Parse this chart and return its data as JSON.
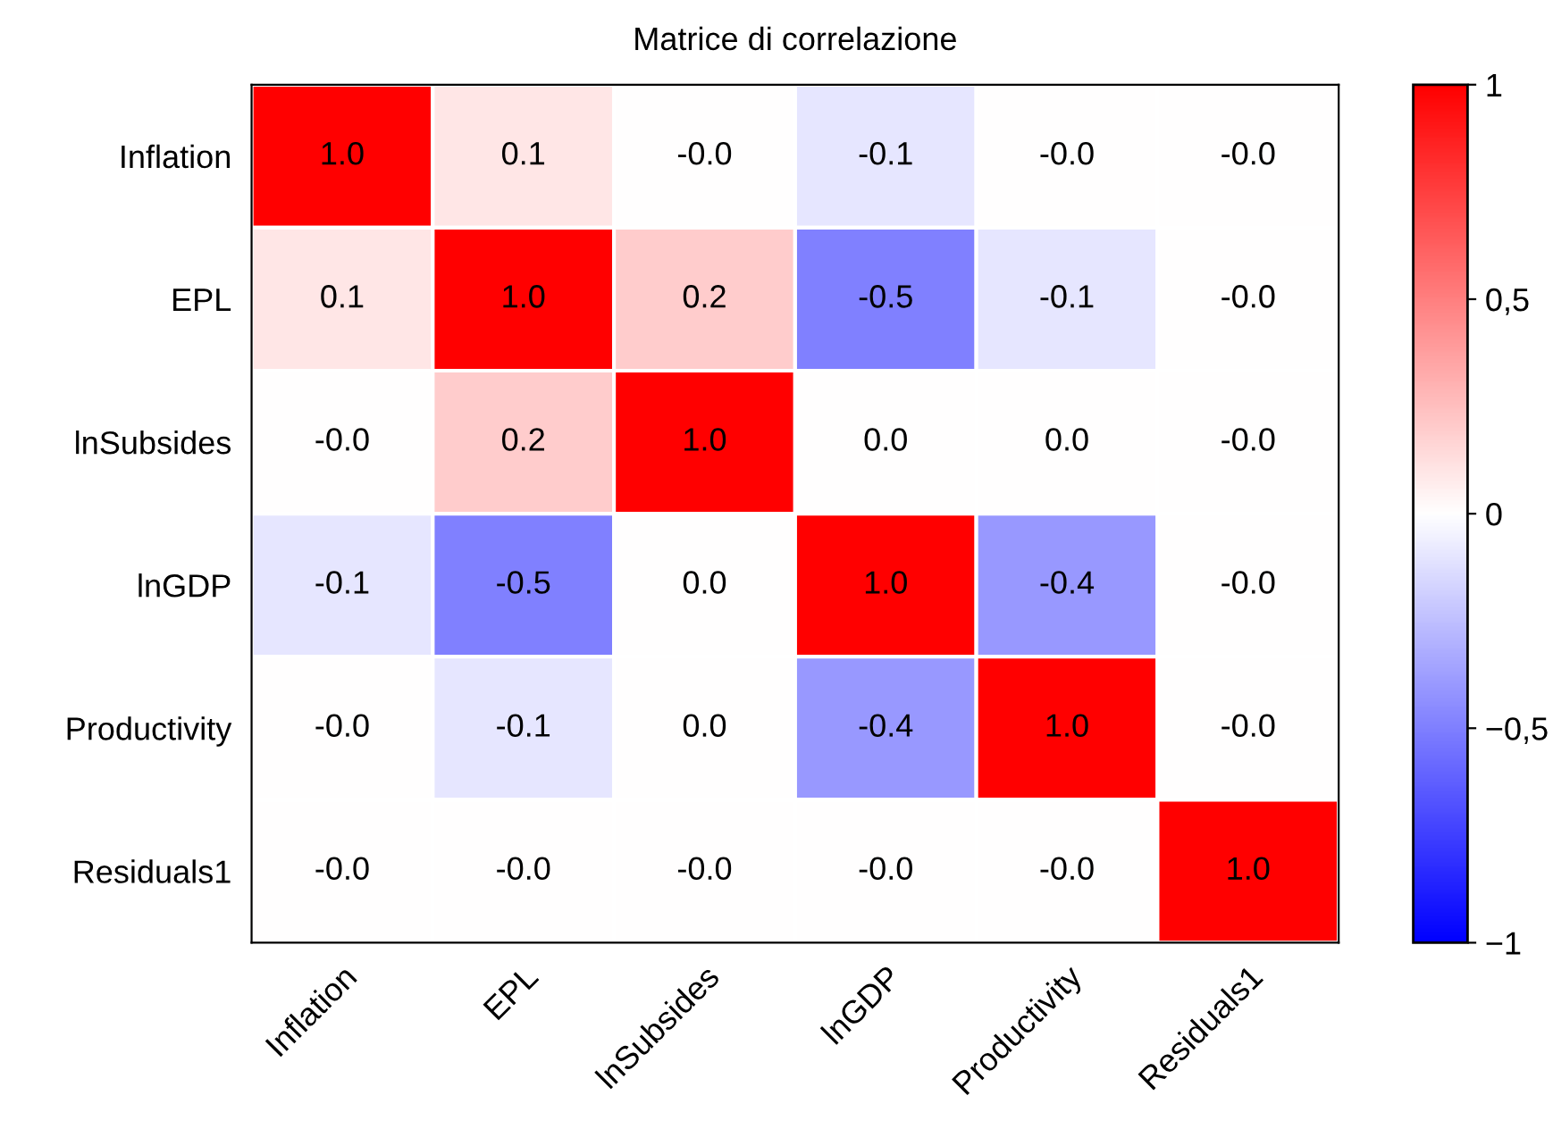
{
  "chart_data": {
    "type": "heatmap",
    "title": "Matrice di correlazione",
    "categories": [
      "Inflation",
      "EPL",
      "lnSubsides",
      "lnGDP",
      "Productivity",
      "Residuals1"
    ],
    "y_categories": [
      "Inflation",
      "EPL",
      "lnSubsides",
      "lnGDP",
      "Productivity",
      "Residuals1"
    ],
    "cells": [
      [
        1.0,
        0.1,
        0.0,
        -0.1,
        0.0,
        0.0
      ],
      [
        0.1,
        1.0,
        0.2,
        -0.5,
        -0.1,
        0.0
      ],
      [
        0.0,
        0.2,
        1.0,
        0.0,
        0.0,
        0.0
      ],
      [
        -0.1,
        -0.5,
        0.0,
        1.0,
        -0.4,
        0.0
      ],
      [
        0.0,
        -0.1,
        0.0,
        -0.4,
        1.0,
        0.0
      ],
      [
        0.0,
        0.0,
        0.0,
        0.0,
        0.0,
        1.0
      ]
    ],
    "cell_labels": [
      [
        "1.0",
        "0.1",
        "-0.0",
        "-0.1",
        "-0.0",
        "-0.0"
      ],
      [
        "0.1",
        "1.0",
        "0.2",
        "-0.5",
        "-0.1",
        "-0.0"
      ],
      [
        "-0.0",
        "0.2",
        "1.0",
        "0.0",
        "0.0",
        "-0.0"
      ],
      [
        "-0.1",
        "-0.5",
        "0.0",
        "1.0",
        "-0.4",
        "-0.0"
      ],
      [
        "-0.0",
        "-0.1",
        "0.0",
        "-0.4",
        "1.0",
        "-0.0"
      ],
      [
        "-0.0",
        "-0.0",
        "-0.0",
        "-0.0",
        "-0.0",
        "1.0"
      ]
    ],
    "clim": [
      -1,
      1
    ],
    "cticks": [
      {
        "value": 1,
        "label": "1"
      },
      {
        "value": 0.5,
        "label": "0,5"
      },
      {
        "value": 0,
        "label": "0"
      },
      {
        "value": -0.5,
        "label": "−0,5"
      },
      {
        "value": -1,
        "label": "−1"
      }
    ]
  }
}
